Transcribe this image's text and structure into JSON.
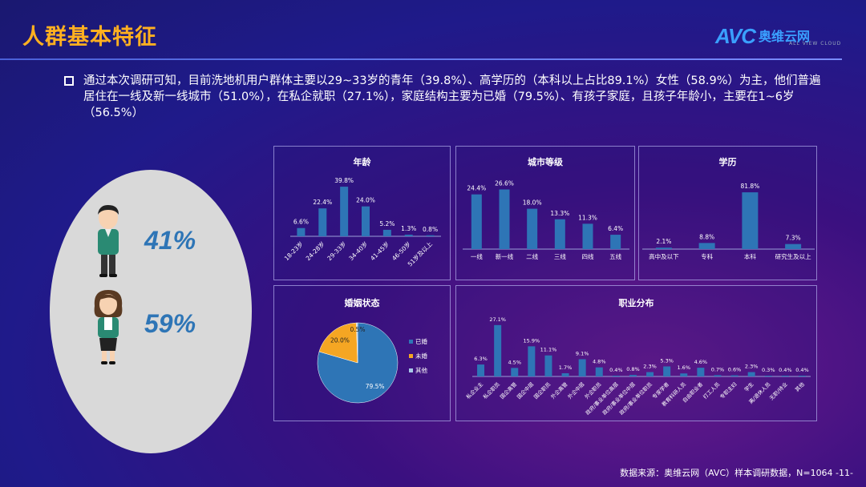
{
  "header": {
    "title": "人群基本特征",
    "logo_main": "AVC",
    "logo_cn": "奥维云网",
    "logo_sub": "ALL VIEW CLOUD"
  },
  "summary": "通过本次调研可知，目前洗地机用户群体主要以29~33岁的青年（39.8%）、高学历的（本科以上占比89.1%）女性（58.9%）为主，他们普遍居住在一线及新一线城市（51.0%），在私企就职（27.1%），家庭结构主要为已婚（79.5%）、有孩子家庭，且孩子年龄小，主要在1~6岁（56.5%）",
  "gender": {
    "male_pct": "41%",
    "female_pct": "59%"
  },
  "source": "数据来源：奥维云网（AVC）样本调研数据，N=1064 -11-",
  "colors": {
    "bar": "#2e75b6",
    "pie_married": "#2e75b6",
    "pie_single": "#f5a623",
    "pie_other": "#a9c9e8",
    "title": "#ffb020"
  },
  "chart_data": [
    {
      "type": "bar",
      "title": "年龄",
      "categories": [
        "18-23岁",
        "24-28岁",
        "29-33岁",
        "34-40岁",
        "41-45岁",
        "46-50岁",
        "51岁及以上"
      ],
      "values": [
        6.6,
        22.4,
        39.8,
        24.0,
        5.2,
        1.3,
        0.8
      ],
      "labels": [
        "6.6%",
        "22.4%",
        "39.8%",
        "24.0%",
        "5.2%",
        "1.3%",
        "0.8%"
      ],
      "ylim": [
        0,
        45
      ]
    },
    {
      "type": "bar",
      "title": "城市等级",
      "categories": [
        "一线",
        "新一线",
        "二线",
        "三线",
        "四线",
        "五线"
      ],
      "values": [
        24.4,
        26.6,
        18.0,
        13.3,
        11.3,
        6.4
      ],
      "labels": [
        "24.4%",
        "26.6%",
        "18.0%",
        "13.3%",
        "11.3%",
        "6.4%"
      ],
      "ylim": [
        0,
        30
      ]
    },
    {
      "type": "bar",
      "title": "学历",
      "categories": [
        "高中及以下",
        "专科",
        "本科",
        "研究生及以上"
      ],
      "values": [
        2.1,
        8.8,
        81.8,
        7.3
      ],
      "labels": [
        "2.1%",
        "8.8%",
        "81.8%",
        "7.3%"
      ],
      "ylim": [
        0,
        90
      ]
    },
    {
      "type": "pie",
      "title": "婚姻状态",
      "categories": [
        "已婚",
        "未婚",
        "其他"
      ],
      "values": [
        79.5,
        20.0,
        0.5
      ],
      "labels": [
        "79.5%",
        "20.0%",
        "0.5%"
      ],
      "legend": "right"
    },
    {
      "type": "bar",
      "title": "职业分布",
      "categories": [
        "私企业主",
        "私企职员",
        "国企高管",
        "国企中层",
        "国企职员",
        "外企高管",
        "外企中层",
        "外企职员",
        "政府/事业单位高层",
        "政府/事业单位中层",
        "政府/事业单位职员",
        "专家学者",
        "教育科研人员",
        "自由职业者",
        "打工人员",
        "专职主妇",
        "学生",
        "离/退休人员",
        "无职/待业",
        "其他"
      ],
      "values": [
        6.3,
        27.1,
        4.5,
        15.9,
        11.1,
        1.7,
        9.1,
        4.8,
        0.4,
        0.8,
        2.3,
        5.3,
        1.6,
        4.6,
        0.7,
        0.6,
        2.3,
        0.3,
        0.4,
        0.4
      ],
      "labels": [
        "6.3%",
        "27.1%",
        "4.5%",
        "15.9%",
        "11.1%",
        "1.7%",
        "9.1%",
        "4.8%",
        "0.4%",
        "0.8%",
        "2.3%",
        "5.3%",
        "1.6%",
        "4.6%",
        "0.7%",
        "0.6%",
        "2.3%",
        "0.3%",
        "0.4%",
        "0.4%"
      ],
      "ylim": [
        0,
        30
      ]
    }
  ]
}
